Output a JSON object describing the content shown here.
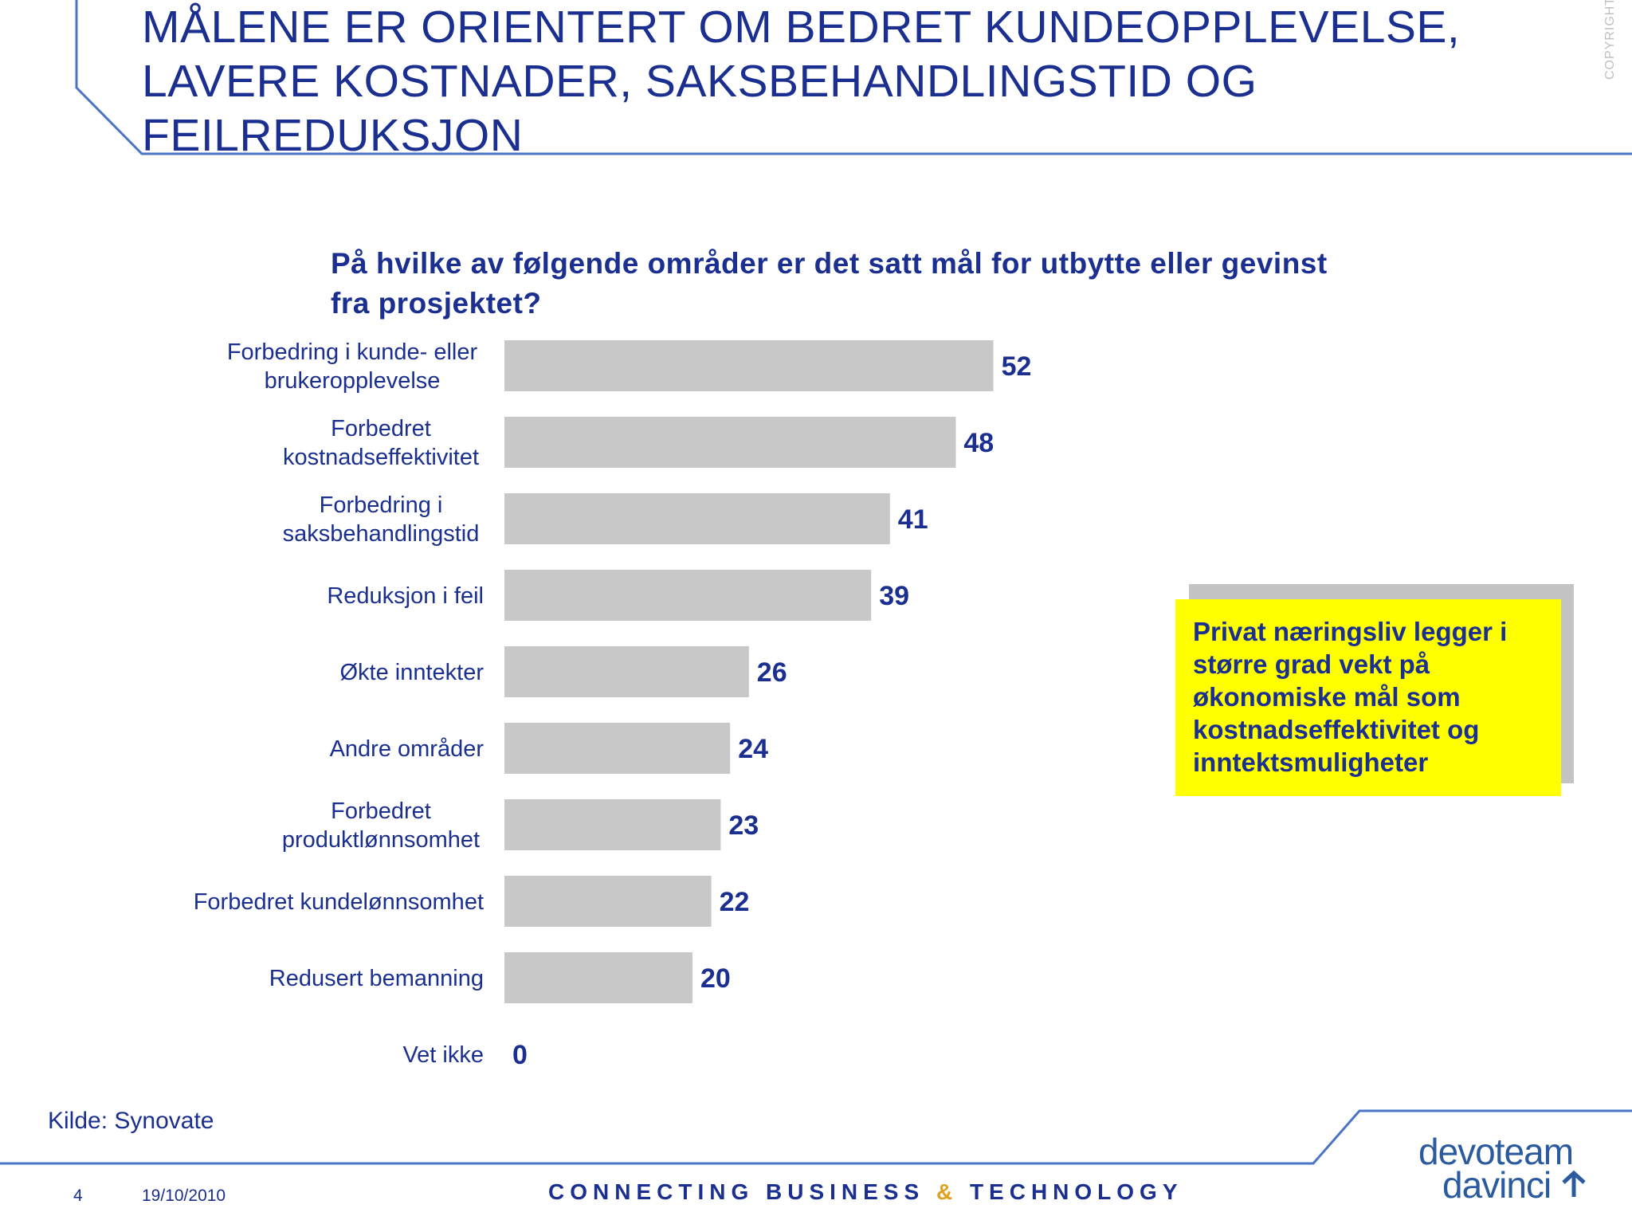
{
  "slide": {
    "title": "MÅLENE ER ORIENTERT OM BEDRET KUNDEOPPLEVELSE, LAVERE KOSTNADER, SAKSBEHANDLINGSTID OG FEILREDUKSJON",
    "copyright": "COPYRIGHT©",
    "source": "Kilde: Synovate",
    "page_number": "4",
    "date": "19/10/2010",
    "tagline_part1": "CONNECTING BUSINESS ",
    "tagline_amp": "&",
    "tagline_part2": " TECHNOLOGY",
    "logo_line1": "devoteam",
    "logo_line2": "davinci",
    "callout": "Privat næringsliv legger i større grad vekt på økonomiske mål som kostnadseffektivitet og inntektsmuligheter",
    "colors": {
      "title": "#1a2f8f",
      "bar": "#c8c8c8",
      "callout_bg": "#ffff00",
      "accent_line": "#4a74c4"
    }
  },
  "chart_data": {
    "type": "bar",
    "orientation": "horizontal",
    "title": "På hvilke av følgende områder er det satt mål for utbytte eller gevinst fra prosjektet?",
    "categories": [
      [
        "Forbedring i kunde- eller",
        "brukeropplevelse"
      ],
      [
        "Forbedret",
        "kostnadseffektivitet"
      ],
      [
        "Forbedring i",
        "saksbehandlingstid"
      ],
      [
        "Reduksjon i feil"
      ],
      [
        "Økte inntekter"
      ],
      [
        "Andre områder"
      ],
      [
        "Forbedret",
        "produktlønnsomhet"
      ],
      [
        "Forbedret kundelønnsomhet"
      ],
      [
        "Redusert bemanning"
      ],
      [
        "Vet ikke"
      ]
    ],
    "values": [
      52,
      48,
      41,
      39,
      26,
      24,
      23,
      22,
      20,
      0
    ],
    "xlim": [
      0,
      100
    ],
    "grid": false,
    "legend": "none"
  }
}
